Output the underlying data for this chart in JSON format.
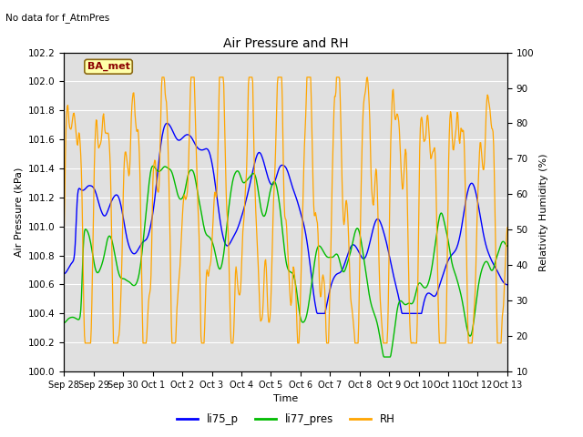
{
  "title": "Air Pressure and RH",
  "subtitle": "No data for f_AtmPres",
  "xlabel": "Time",
  "ylabel_left": "Air Pressure (kPa)",
  "ylabel_right": "Relativity Humidity (%)",
  "annotation": "BA_met",
  "ylim_left": [
    100.0,
    102.2
  ],
  "ylim_right": [
    10,
    100
  ],
  "yticks_left": [
    100.0,
    100.2,
    100.4,
    100.6,
    100.8,
    101.0,
    101.2,
    101.4,
    101.6,
    101.8,
    102.0,
    102.2
  ],
  "yticks_right": [
    10,
    20,
    30,
    40,
    50,
    60,
    70,
    80,
    90,
    100
  ],
  "color_blue": "#0000ff",
  "color_green": "#00bb00",
  "color_orange": "#ffa500",
  "bg_color": "#e0e0e0",
  "legend_labels": [
    "li75_p",
    "li77_pres",
    "RH"
  ],
  "xtick_labels": [
    "Sep 28",
    "Sep 29",
    "Sep 30",
    "Oct 1",
    "Oct 2",
    "Oct 3",
    "Oct 4",
    "Oct 5",
    "Oct 6",
    "Oct 7",
    "Oct 8",
    "Oct 9",
    "Oct 10",
    "Oct 11",
    "Oct 12",
    "Oct 13"
  ]
}
